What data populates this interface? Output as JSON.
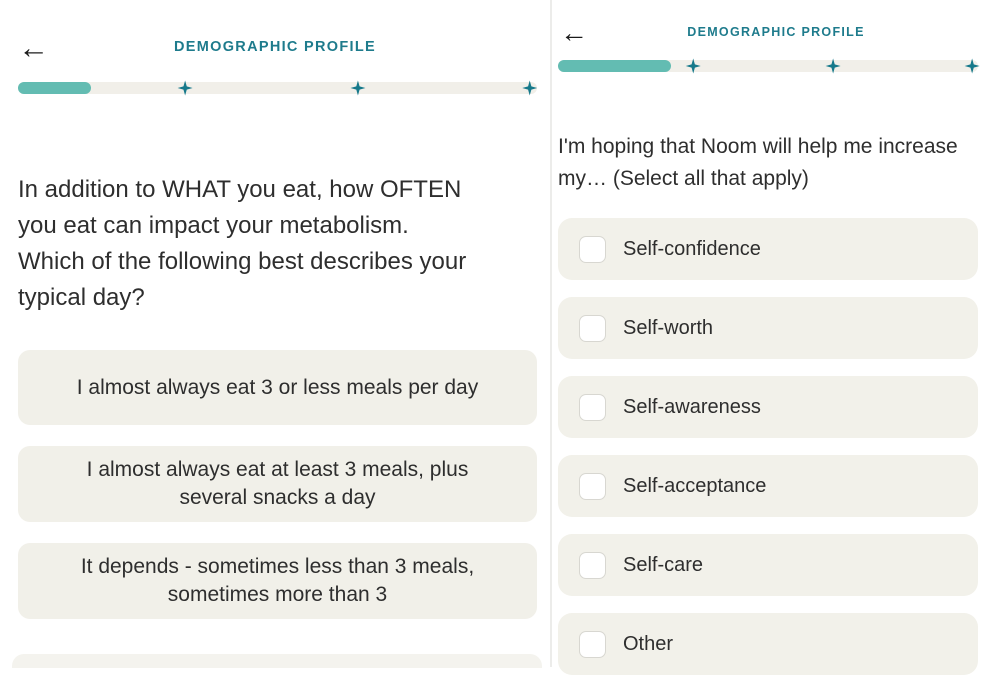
{
  "colors": {
    "accent_teal": "#63bcb2",
    "title_teal": "#1e7b8c",
    "milestone_teal": "#16798b",
    "option_background": "#f1f0e9",
    "text_dark": "#2e2e2e"
  },
  "left_screen": {
    "back_icon": "←",
    "title": "DEMOGRAPHIC PROFILE",
    "progress_percent": 14,
    "question": "In addition to WHAT you eat, how OFTEN\nyou eat can impact your metabolism.\nWhich of the following best describes your\ntypical day?",
    "options": [
      "I almost always eat 3 or less meals per day",
      "I almost always eat at least 3 meals, plus\nseveral snacks a day",
      "It depends - sometimes less than 3 meals,\nsometimes more than 3"
    ]
  },
  "right_screen": {
    "back_icon": "←",
    "title": "DEMOGRAPHIC PROFILE",
    "progress_percent": 27,
    "question": "I'm hoping that Noom will help me increase\nmy… (Select all that apply)",
    "options": [
      {
        "label": "Self-confidence",
        "checked": false
      },
      {
        "label": "Self-worth",
        "checked": false
      },
      {
        "label": "Self-awareness",
        "checked": false
      },
      {
        "label": "Self-acceptance",
        "checked": false
      },
      {
        "label": "Self-care",
        "checked": false
      },
      {
        "label": "Other",
        "checked": false
      }
    ]
  }
}
